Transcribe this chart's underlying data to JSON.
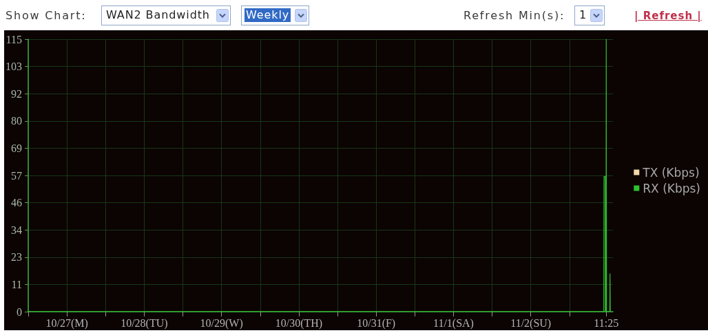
{
  "chart_data": {
    "type": "line",
    "annotations": [
      "Show Chart:",
      "WAN2 Bandwidth",
      "Weekly",
      "Refresh Min(s):",
      "1",
      "| Refresh |"
    ],
    "x": [
      "--10-27T00:00",
      "--11-03T10:39",
      "--11-03T10:43",
      "--11-03T11:06",
      "--11-03T11:08",
      "--11-03T11:21",
      "--11-03T11:25",
      "--11-03T11:30",
      "--11-03T12:31",
      "--11-03T12:35",
      "--11-03T12:40"
    ],
    "series": [
      {
        "name": "TX (Kbps)",
        "color": "#f3d9a8",
        "values": [
          null,
          null,
          null,
          null,
          null,
          null,
          null,
          null,
          null,
          null,
          null
        ]
      },
      {
        "name": "RX (Kbps)",
        "color": "#2fc02f",
        "values": [
          0,
          0,
          57,
          57,
          0,
          0,
          115,
          0,
          0,
          16,
          0
        ]
      }
    ],
    "xlim": [
      "--10-27T00:00",
      "--11-03T13:30"
    ],
    "xticks": [
      {
        "value": "--10-27T00:00",
        "label": null
      },
      {
        "value": "--10-27T12:00",
        "label": "10/27(M)"
      },
      {
        "value": "--10-28T00:00",
        "label": null
      },
      {
        "value": "--10-28T12:00",
        "label": "10/28(TU)"
      },
      {
        "value": "--10-29T00:00",
        "label": null
      },
      {
        "value": "--10-29T12:00",
        "label": "10/29(W)"
      },
      {
        "value": "--10-30T00:00",
        "label": null
      },
      {
        "value": "--10-30T12:00",
        "label": "10/30(TH)"
      },
      {
        "value": "--10-31T00:00",
        "label": null
      },
      {
        "value": "--10-31T12:00",
        "label": "10/31(F)"
      },
      {
        "value": "--11-01T00:00",
        "label": null
      },
      {
        "value": "--11-01T12:00",
        "label": "11/1(SA)"
      },
      {
        "value": "--11-02T00:00",
        "label": null
      },
      {
        "value": "--11-02T12:00",
        "label": "11/2(SU)"
      },
      {
        "value": "--11-03T00:00",
        "label": null
      },
      {
        "value": "--11-03T11:25",
        "label": "11:25"
      }
    ],
    "ylim": [
      0,
      115
    ],
    "yticks": [
      0,
      {
        "value": 11.5,
        "label": "11"
      },
      23,
      {
        "value": 34.5,
        "label": "34"
      },
      46,
      {
        "value": 57.5,
        "label": "57"
      },
      69,
      {
        "value": 80.5,
        "label": "80"
      },
      92,
      {
        "value": 103.5,
        "label": "103"
      },
      115
    ],
    "grid": true,
    "legend": "right"
  }
}
